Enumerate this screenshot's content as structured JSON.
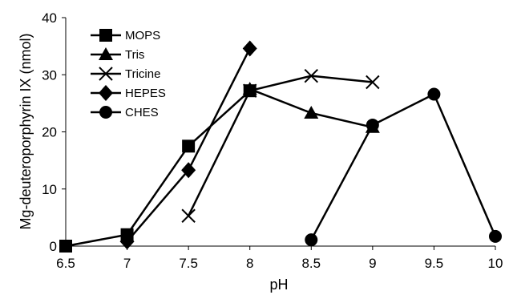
{
  "chart_data": {
    "type": "line",
    "title": "",
    "xlabel": "pH",
    "ylabel": "Mg-deuteroporphyrin IX (nmol)",
    "xlim": [
      6.5,
      10
    ],
    "ylim": [
      0,
      40
    ],
    "xticks": [
      "6.5",
      "7",
      "7.5",
      "8",
      "8.5",
      "9",
      "9.5",
      "10"
    ],
    "yticks": [
      "0",
      "10",
      "20",
      "30",
      "40"
    ],
    "grid": false,
    "legend_position": "top-left",
    "series": [
      {
        "name": "MOPS",
        "marker": "square",
        "color": "#000000",
        "x": [
          6.5,
          7,
          7.5,
          8
        ],
        "y": [
          0,
          2,
          17.5,
          27.2
        ]
      },
      {
        "name": "Tris",
        "marker": "triangle",
        "color": "#000000",
        "x": [
          8,
          8.5,
          9
        ],
        "y": [
          27.5,
          23.3,
          20.8
        ]
      },
      {
        "name": "Tricine",
        "marker": "x",
        "color": "#000000",
        "x": [
          7.5,
          8,
          8.5,
          9
        ],
        "y": [
          5.3,
          27.2,
          29.8,
          28.7
        ]
      },
      {
        "name": "HEPES",
        "marker": "diamond",
        "color": "#000000",
        "x": [
          7,
          7.5,
          8
        ],
        "y": [
          0.8,
          13.3,
          34.6
        ]
      },
      {
        "name": "CHES",
        "marker": "circle",
        "color": "#000000",
        "x": [
          8.5,
          9,
          9.5,
          10
        ],
        "y": [
          1.1,
          21.2,
          26.6,
          1.7
        ]
      }
    ]
  }
}
